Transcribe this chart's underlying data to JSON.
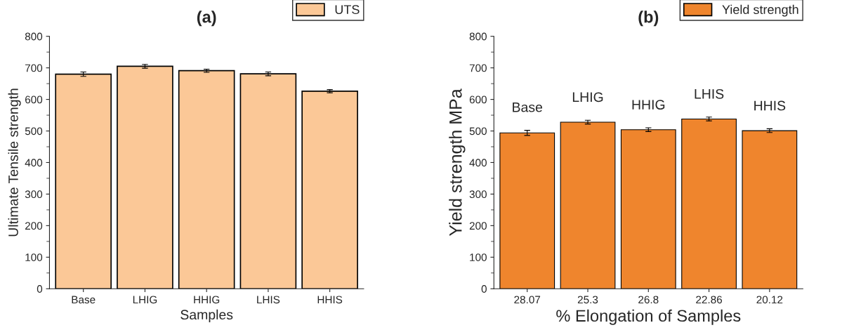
{
  "chart_data": [
    {
      "type": "bar",
      "title": "(a)",
      "xlabel": "Samples",
      "ylabel": "Ultimate Tensile strength",
      "categories": [
        "Base",
        "LHIG",
        "HHIG",
        "LHIS",
        "HHIS"
      ],
      "series": [
        {
          "name": "UTS",
          "color": "#fbc897",
          "values": [
            680,
            705,
            691,
            681,
            626
          ],
          "errors": [
            7,
            6,
            5,
            6,
            5
          ]
        }
      ],
      "ylim": [
        0,
        800
      ],
      "yticks": [
        0,
        100,
        200,
        300,
        400,
        500,
        600,
        700,
        800
      ],
      "legend": "top right"
    },
    {
      "type": "bar",
      "title": "(b)",
      "xlabel": "% Elongation of Samples",
      "ylabel": "Yield strength MPa",
      "categories": [
        "28.07",
        "25.3",
        "26.8",
        "22.86",
        "20.12"
      ],
      "series": [
        {
          "name": "Yield strength",
          "color": "#ef852d",
          "values": [
            494,
            528,
            504,
            538,
            501
          ],
          "errors": [
            8,
            6,
            6,
            6,
            6
          ]
        }
      ],
      "ylim": [
        0,
        800
      ],
      "yticks": [
        0,
        100,
        200,
        300,
        400,
        500,
        600,
        700,
        800
      ],
      "legend": "top right",
      "annotations": [
        "Base",
        "LHIG",
        "HHIG",
        "LHIS",
        "HHIS"
      ]
    }
  ]
}
